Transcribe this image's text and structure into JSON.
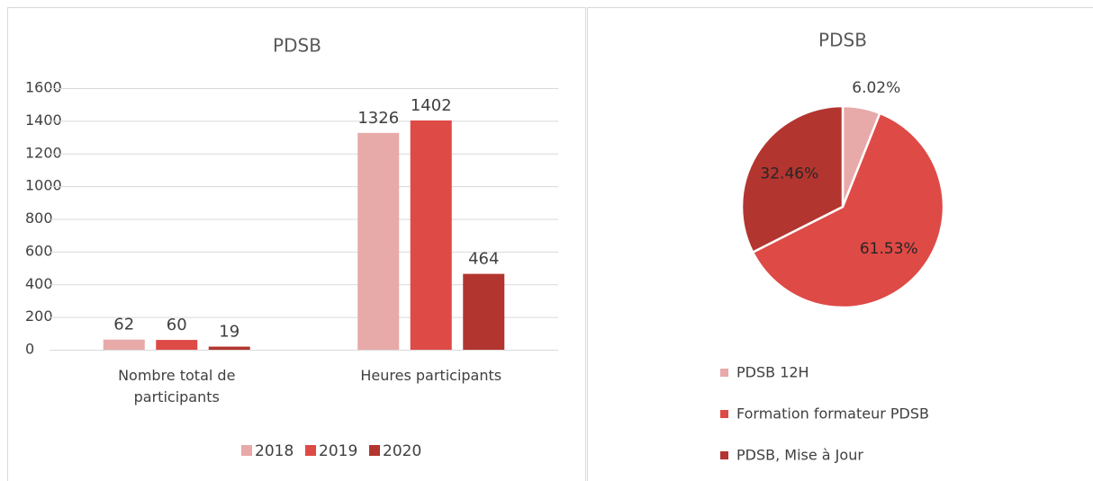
{
  "chart_data": [
    {
      "type": "bar",
      "title": "PDSB",
      "categories": [
        "Nombre total de participants",
        "Heures participants"
      ],
      "series": [
        {
          "name": "2018",
          "color": "#e8a9a9",
          "values": [
            62,
            1326
          ]
        },
        {
          "name": "2019",
          "color": "#de4a46",
          "values": [
            60,
            1402
          ]
        },
        {
          "name": "2020",
          "color": "#b3352f",
          "values": [
            19,
            464
          ]
        }
      ],
      "ylim": [
        0,
        1600
      ],
      "yticks": [
        0,
        200,
        400,
        600,
        800,
        1000,
        1200,
        1400,
        1600
      ],
      "grid": true,
      "legend": "bottom"
    },
    {
      "type": "pie",
      "title": "PDSB",
      "categories": [
        "PDSB 12H",
        "Formation formateur PDSB",
        "PDSB, Mise à Jour"
      ],
      "values": [
        6.02,
        61.53,
        32.46
      ],
      "value_labels": [
        "6.02%",
        "61.53%",
        "32.46%"
      ],
      "colors": [
        "#e8a9a9",
        "#de4a46",
        "#b3352f"
      ],
      "legend": "bottom"
    }
  ]
}
